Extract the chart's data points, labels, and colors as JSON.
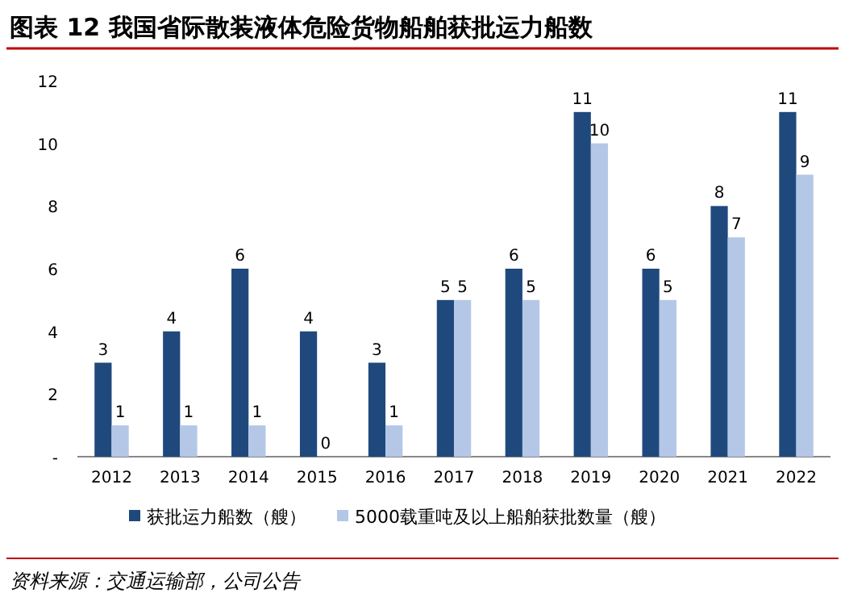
{
  "chart_data": {
    "type": "bar",
    "title": "图表 12  我国省际散装液体危险货物船舶获批运力船数",
    "categories": [
      "2012",
      "2013",
      "2014",
      "2015",
      "2016",
      "2017",
      "2018",
      "2019",
      "2020",
      "2021",
      "2022"
    ],
    "series": [
      {
        "name": "获批运力船数（艘）",
        "color": "#1f497d",
        "values": [
          3,
          4,
          6,
          4,
          3,
          5,
          6,
          11,
          6,
          8,
          11
        ]
      },
      {
        "name": "5000载重吨及以上船舶获批数量（艘）",
        "color": "#b4c7e7",
        "values": [
          1,
          1,
          1,
          0,
          1,
          5,
          5,
          10,
          5,
          7,
          9
        ]
      }
    ],
    "ylim": [
      0,
      12
    ],
    "yticks": [
      {
        "value": 0,
        "label": "-"
      },
      2,
      4,
      6,
      8,
      10,
      12
    ],
    "data_labels": true,
    "legend": "bottom",
    "grid": false,
    "annotations": [
      "资料来源：交通运输部，公司公告"
    ]
  }
}
